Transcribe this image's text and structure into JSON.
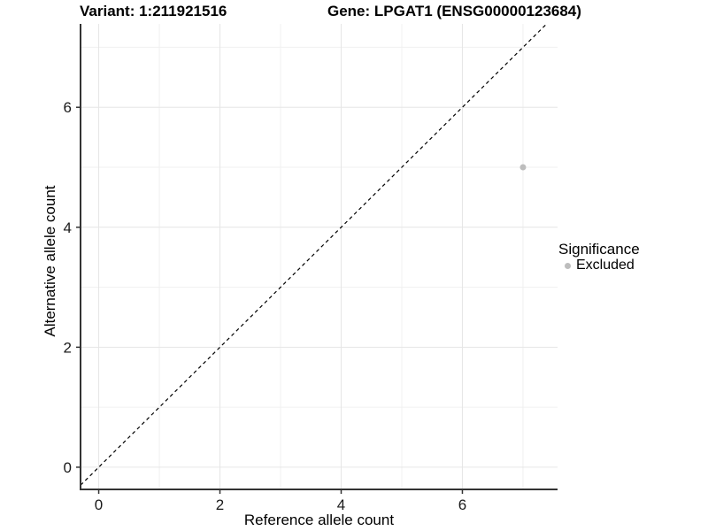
{
  "title": {
    "variant": "Variant: 1:211921516",
    "gene": "Gene: LPGAT1 (ENSG00000123684)"
  },
  "axes": {
    "x_label": "Reference allele count",
    "y_label": "Alternative allele count"
  },
  "legend": {
    "title": "Significance",
    "items": [
      {
        "label": "Excluded",
        "color": "#bdbdbd"
      }
    ]
  },
  "chart_data": {
    "type": "scatter",
    "title": "Variant: 1:211921516  Gene: LPGAT1 (ENSG00000123684)",
    "xlabel": "Reference allele count",
    "ylabel": "Alternative allele count",
    "xlim": [
      -0.3,
      7.57
    ],
    "ylim": [
      -0.37,
      7.39
    ],
    "x_major_ticks": [
      0,
      2,
      4,
      6
    ],
    "x_minor_ticks": [
      1,
      3,
      5,
      7
    ],
    "y_major_ticks": [
      0,
      2,
      4,
      6
    ],
    "y_minor_ticks": [
      1,
      3,
      5,
      7
    ],
    "grid": true,
    "legend_position": "right",
    "series": [
      {
        "name": "Excluded",
        "color": "#bdbdbd",
        "points": [
          {
            "x": 7,
            "y": 5
          }
        ]
      }
    ],
    "reference_line": {
      "type": "identity",
      "style": "dashed",
      "color": "#000000"
    }
  },
  "style_colors": {
    "axis_line": "#333333",
    "tick_mark": "#333333",
    "tick_label": "#1a1a1a",
    "grid_major": "#e6e6e6",
    "grid_minor": "#f0f0f0",
    "panel_background": "#ffffff"
  }
}
